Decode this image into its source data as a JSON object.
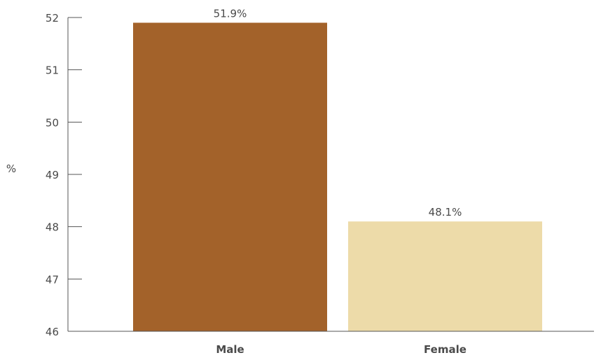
{
  "chart_data": {
    "type": "bar",
    "categories": [
      "Male",
      "Female"
    ],
    "values": [
      51.9,
      48.1
    ],
    "data_labels": [
      "51.9%",
      "48.1%"
    ],
    "colors": [
      "#A3622A",
      "#EDDBA9"
    ],
    "title": "",
    "xlabel": "",
    "ylabel": "%",
    "ylim": [
      46,
      52
    ],
    "yticks": [
      "46",
      "47",
      "48",
      "49",
      "50",
      "51",
      "52"
    ],
    "grid": false,
    "legend": "none"
  }
}
